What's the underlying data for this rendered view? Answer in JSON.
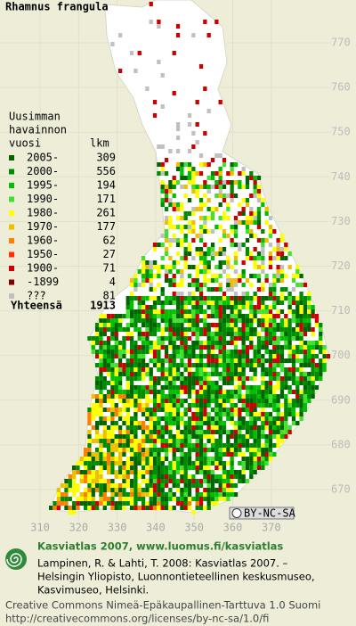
{
  "title": "Rhamnus frangula",
  "legend": {
    "heading": [
      "Uusimman",
      "havainnon"
    ],
    "col_year": "vuosi",
    "col_count": "lkm",
    "rows": [
      {
        "label": "2005-",
        "count": 309,
        "color": "#006400"
      },
      {
        "label": "2000-",
        "count": 556,
        "color": "#008c00"
      },
      {
        "label": "1995-",
        "count": 194,
        "color": "#00c000"
      },
      {
        "label": "1990-",
        "count": 171,
        "color": "#44e030"
      },
      {
        "label": "1980-",
        "count": 261,
        "color": "#ffff00"
      },
      {
        "label": "1970-",
        "count": 177,
        "color": "#f0c000"
      },
      {
        "label": "1960-",
        "count": 62,
        "color": "#ff8000"
      },
      {
        "label": "1950-",
        "count": 27,
        "color": "#ff3000"
      },
      {
        "label": "1900-",
        "count": 71,
        "color": "#cc0000"
      },
      {
        "label": "-1899",
        "count": 4,
        "color": "#800000"
      },
      {
        "label": "???",
        "count": 81,
        "color": "#c0c0c0"
      }
    ],
    "total_label": "Yhteensä",
    "total": 1913
  },
  "x_ticks": [
    310,
    320,
    330,
    340,
    350,
    360,
    370
  ],
  "y_ticks": [
    670,
    680,
    690,
    700,
    710,
    720,
    730,
    740,
    750,
    760,
    770
  ],
  "license_badge": "BY-NC-SA",
  "footer": {
    "title": "Kasviatlas 2007, www.luomus.fi/kasviatlas",
    "citation": [
      "Lampinen, R. & Lahti, T. 2008: Kasviatlas 2007. –",
      "Helsingin Yliopisto, Luonnontieteellinen keskusmuseo,",
      "Kasvimuseo, Helsinki."
    ],
    "license": [
      "Creative Commons Nimeä-Epäkaupallinen-Tarttuva 1.0 Suomi",
      "http://creativecommons.org/licenses/by-nc-sa/1.0/fi"
    ]
  }
}
